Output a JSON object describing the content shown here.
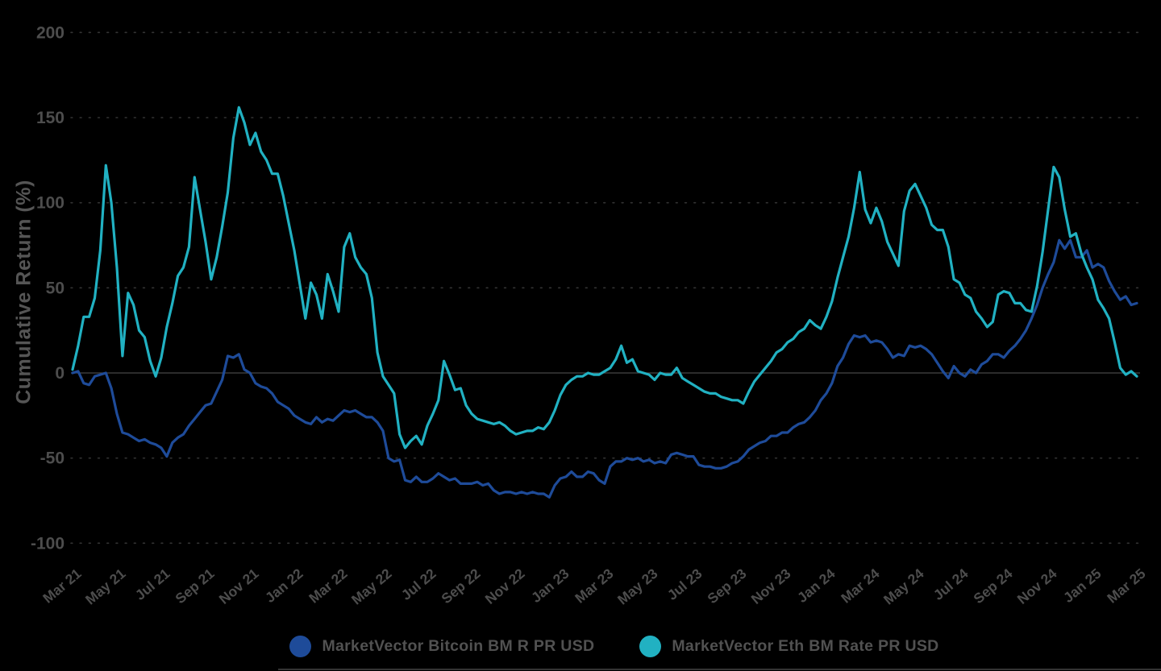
{
  "colors": {
    "background": "#000000",
    "grid_dotted": "#333333",
    "zero_line": "#474747",
    "tick_text": "#4d4d4d",
    "axis_title": "#555555",
    "legend_text": "#515151",
    "bitcoin_line": "#1e4b99",
    "eth_line": "#21b1c2"
  },
  "chart_data": {
    "type": "line",
    "title": "",
    "xlabel": "",
    "ylabel": "Cumulative Return (%)",
    "ylim": [
      -100,
      200
    ],
    "y_ticks": [
      200,
      150,
      100,
      50,
      0,
      -50,
      -100
    ],
    "grid": "horizontal dotted, solid line at 0",
    "legend_position": "bottom-center",
    "x_unit": "months since Mar 2021",
    "x_start": 0,
    "x_step": 0.25,
    "x_tick_interval_months": 2,
    "x_tick_labels": [
      "Mar 21",
      "May 21",
      "Jul 21",
      "Sep 21",
      "Nov 21",
      "Jan 22",
      "Mar 22",
      "May 22",
      "Jul 22",
      "Sep 22",
      "Nov 22",
      "Jan 23",
      "Mar 23",
      "May 23",
      "Jul 23",
      "Sep 23",
      "Nov 23",
      "Jan 24",
      "Mar 24",
      "May 24",
      "Jul 24",
      "Sep 24",
      "Nov 24",
      "Jan 25",
      "Mar 25"
    ],
    "series": [
      {
        "name": "MarketVector Bitcoin BM R PR USD",
        "color": "#1e4b99",
        "values": [
          0,
          1,
          -6,
          -7,
          -2,
          -1,
          0,
          -9,
          -24,
          -35,
          -36,
          -38,
          -40,
          -39,
          -41,
          -42,
          -44,
          -49,
          -41,
          -38,
          -36,
          -31,
          -27,
          -23,
          -19,
          -18,
          -11,
          -4,
          10,
          9,
          11,
          2,
          0,
          -6,
          -8,
          -9,
          -12,
          -17,
          -19,
          -21,
          -25,
          -27,
          -29,
          -30,
          -26,
          -29,
          -27,
          -28,
          -25,
          -22,
          -23,
          -22,
          -24,
          -26,
          -26,
          -29,
          -34,
          -50,
          -52,
          -51,
          -63,
          -64,
          -61,
          -64,
          -64,
          -62,
          -59,
          -61,
          -63,
          -62,
          -65,
          -65,
          -65,
          -64,
          -66,
          -65,
          -69,
          -71,
          -70,
          -70,
          -71,
          -70,
          -71,
          -70,
          -71,
          -71,
          -73,
          -66,
          -62,
          -61,
          -58,
          -61,
          -61,
          -58,
          -59,
          -63,
          -65,
          -55,
          -52,
          -52,
          -50,
          -51,
          -50,
          -52,
          -51,
          -53,
          -52,
          -53,
          -48,
          -47,
          -48,
          -49,
          -49,
          -54,
          -55,
          -55,
          -56,
          -56,
          -55,
          -53,
          -52,
          -49,
          -45,
          -43,
          -41,
          -40,
          -37,
          -37,
          -35,
          -35,
          -32,
          -30,
          -29,
          -26,
          -22,
          -16,
          -12,
          -6,
          4,
          9,
          17,
          22,
          21,
          22,
          18,
          19,
          18,
          14,
          9,
          11,
          10,
          16,
          15,
          16,
          14,
          11,
          6,
          1,
          -3,
          4,
          0,
          -2,
          2,
          0,
          5,
          7,
          11,
          11,
          9,
          13,
          16,
          20,
          25,
          32,
          40,
          50,
          58,
          65,
          78,
          73,
          78,
          68,
          68,
          72,
          62,
          64,
          62,
          54,
          48,
          43,
          45,
          40,
          41
        ]
      },
      {
        "name": "MarketVector Eth BM Rate PR USD",
        "color": "#21b1c2",
        "values": [
          2,
          16,
          33,
          33,
          44,
          72,
          122,
          100,
          62,
          10,
          47,
          40,
          25,
          21,
          7,
          -2,
          9,
          27,
          41,
          57,
          62,
          74,
          115,
          96,
          77,
          55,
          68,
          86,
          106,
          138,
          156,
          147,
          134,
          141,
          130,
          125,
          117,
          117,
          104,
          88,
          72,
          52,
          32,
          53,
          46,
          32,
          58,
          48,
          36,
          74,
          82,
          68,
          62,
          58,
          44,
          12,
          -2,
          -7,
          -12,
          -36,
          -44,
          -40,
          -37,
          -42,
          -31,
          -24,
          -16,
          7,
          -1,
          -10,
          -9,
          -19,
          -24,
          -27,
          -28,
          -29,
          -30,
          -29,
          -31,
          -34,
          -36,
          -35,
          -34,
          -34,
          -32,
          -33,
          -29,
          -22,
          -13,
          -7,
          -4,
          -2,
          -2,
          0,
          -1,
          -1,
          1,
          3,
          8,
          16,
          6,
          8,
          1,
          0,
          -1,
          -4,
          0,
          -1,
          -1,
          3,
          -3,
          -5,
          -7,
          -9,
          -11,
          -12,
          -12,
          -14,
          -15,
          -16,
          -16,
          -18,
          -11,
          -5,
          -1,
          3,
          7,
          12,
          14,
          18,
          20,
          24,
          26,
          31,
          28,
          26,
          33,
          42,
          56,
          68,
          80,
          97,
          118,
          96,
          88,
          97,
          89,
          77,
          70,
          63,
          95,
          107,
          111,
          104,
          97,
          87,
          84,
          84,
          74,
          55,
          53,
          46,
          44,
          36,
          32,
          27,
          30,
          46,
          48,
          47,
          41,
          41,
          37,
          36,
          51,
          71,
          96,
          121,
          115,
          96,
          80,
          82,
          70,
          62,
          55,
          43,
          38,
          32,
          18,
          3,
          -1,
          1,
          -2
        ]
      }
    ]
  }
}
